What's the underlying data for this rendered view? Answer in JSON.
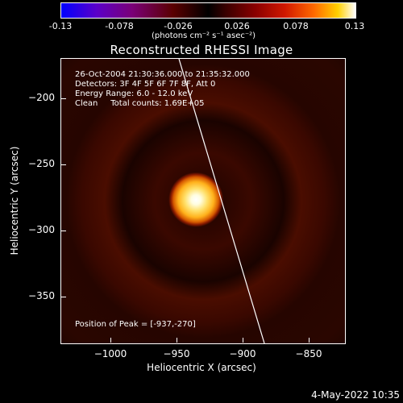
{
  "colorbar": {
    "ticks": [
      "-0.13",
      "-0.078",
      "-0.026",
      "0.026",
      "0.078",
      "0.13"
    ],
    "units": "(photons cm⁻² s⁻¹ asec⁻²)"
  },
  "title": "Reconstructed RHESSI Image",
  "info": {
    "time_range": "26-Oct-2004 21:30:36.000 to 21:35:32.000",
    "detectors": "Detectors: 3F 4F 5F 6F 7F 8F, Att 0",
    "energy_range": "Energy Range: 6.0 - 12.0 keV",
    "clean_counts": "Clean     Total counts: 1.69E+05"
  },
  "peak_position": "Position of Peak = [-937,-270]",
  "axes": {
    "x_label": "Heliocentric X (arcsec)",
    "y_label": "Heliocentric Y (arcsec)",
    "x_ticks": [
      "−1000",
      "−950",
      "−900",
      "−850"
    ],
    "y_ticks": [
      "−200",
      "−250",
      "−300",
      "−350"
    ]
  },
  "date_stamp": "4-May-2022 10:35",
  "colors": {
    "background": "#000000",
    "limb_line": "#ffffff"
  }
}
